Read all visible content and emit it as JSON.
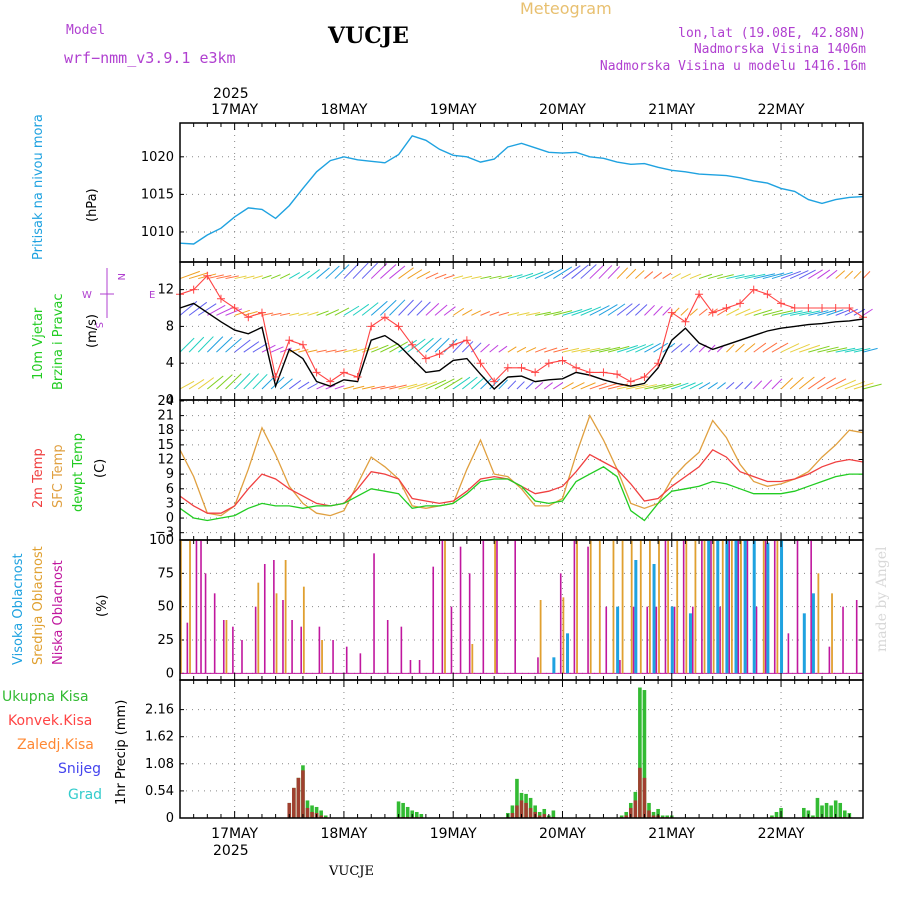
{
  "header": {
    "model_label": "Model",
    "model_name": "wrf−nmm_v3.9.1  e3km",
    "station": "VUCJE",
    "meteogram": "Meteogram",
    "lonlat": "lon,lat (19.08E, 42.88N)",
    "altitude": "Nadmorska Visina 1406m",
    "model_altitude": "Nadmorska Visina u modelu 1416.16m",
    "year": "2025",
    "watermark": "made by Angel",
    "footer_station": "VUCJE"
  },
  "colors": {
    "pressure": "#1fa2e0",
    "wind_speed": "#000000",
    "gust": "#ff4444",
    "temp2m": "#f04040",
    "sfc": "#e0a040",
    "dewpt": "#22cc22",
    "cloud_high": "#1fa2e0",
    "cloud_mid": "#e0a030",
    "cloud_low": "#c0179e",
    "precip_total": "#33bb33",
    "precip_conv": "#a04030"
  },
  "chart_data": [
    {
      "id": "pressure",
      "type": "line",
      "ylabel": "Pritisak na nivou mora",
      "unit": "(hPa)",
      "ylim": [
        1006,
        1024.5
      ],
      "yticks": [
        "1010",
        "1015",
        "1020"
      ],
      "ytick_values": [
        1010,
        1015,
        1020
      ],
      "x_hours": [
        0,
        3,
        6,
        9,
        12,
        15,
        18,
        21,
        24,
        27,
        30,
        33,
        36,
        39,
        42,
        45,
        48,
        51,
        54,
        57,
        60,
        63,
        66,
        69,
        72,
        75,
        78,
        81,
        84,
        87,
        90,
        93,
        96,
        99,
        102,
        105,
        108,
        111,
        114,
        117,
        120,
        123,
        126,
        129,
        132,
        135,
        138,
        141,
        144,
        147,
        150
      ],
      "values": [
        1008.5,
        1008.4,
        1009.6,
        1010.5,
        1012.0,
        1013.2,
        1013.0,
        1011.8,
        1013.5,
        1015.8,
        1018.0,
        1019.5,
        1020.0,
        1019.6,
        1019.4,
        1019.2,
        1020.3,
        1022.8,
        1022.2,
        1021.0,
        1020.2,
        1020.0,
        1019.3,
        1019.7,
        1021.3,
        1021.8,
        1021.2,
        1020.6,
        1020.5,
        1020.6,
        1020.0,
        1019.8,
        1019.3,
        1019.0,
        1019.1,
        1018.6,
        1018.2,
        1018.0,
        1017.7,
        1017.6,
        1017.5,
        1017.2,
        1016.8,
        1016.5,
        1015.8,
        1015.4,
        1014.3,
        1013.8,
        1014.3,
        1014.6,
        1014.7
      ]
    },
    {
      "id": "wind",
      "type": "line",
      "ylabel_1": "10m Vjetar",
      "ylabel_2": "Brzina i Pravac",
      "unit": "(m/s)",
      "compass": {
        "n": "N",
        "w": "W",
        "e": "E",
        "s": "S"
      },
      "ylim": [
        0,
        15
      ],
      "yticks": [
        "0",
        "4",
        "8",
        "12"
      ],
      "ytick_values": [
        0,
        4,
        8,
        12
      ],
      "x_hours": [
        0,
        3,
        6,
        9,
        12,
        15,
        18,
        21,
        24,
        27,
        30,
        33,
        36,
        39,
        42,
        45,
        48,
        51,
        54,
        57,
        60,
        63,
        66,
        69,
        72,
        75,
        78,
        81,
        84,
        87,
        90,
        93,
        96,
        99,
        102,
        105,
        108,
        111,
        114,
        117,
        120,
        123,
        126,
        129,
        132,
        135,
        138,
        141,
        144,
        147,
        150
      ],
      "speed": [
        10.0,
        10.5,
        9.5,
        8.5,
        7.6,
        7.2,
        7.9,
        1.5,
        5.5,
        4.5,
        2.0,
        1.5,
        2.2,
        2.0,
        6.5,
        7.0,
        6.0,
        4.5,
        3.0,
        3.2,
        4.3,
        4.5,
        2.8,
        1.2,
        2.5,
        2.6,
        2.0,
        2.2,
        2.3,
        3.0,
        2.7,
        2.2,
        1.8,
        1.5,
        1.8,
        3.5,
        6.5,
        7.8,
        6.2,
        5.5,
        6.0,
        6.5,
        7.0,
        7.5,
        7.8,
        8.0,
        8.2,
        8.3,
        8.5,
        8.6,
        8.8
      ],
      "gust": [
        11.5,
        12.0,
        13.5,
        11.0,
        10.0,
        9.0,
        9.5,
        2.5,
        6.5,
        6.0,
        3.0,
        2.0,
        3.0,
        2.5,
        8.0,
        9.0,
        8.0,
        6.0,
        4.5,
        5.0,
        6.0,
        6.5,
        4.0,
        2.0,
        3.5,
        3.5,
        3.0,
        4.0,
        4.3,
        3.5,
        3.0,
        3.0,
        2.8,
        2.0,
        2.5,
        4.0,
        9.5,
        8.5,
        11.5,
        9.5,
        10.0,
        10.5,
        12.0,
        11.5,
        10.5,
        10.0,
        10.0,
        10.0,
        10.0,
        10.0,
        9.0
      ]
    },
    {
      "id": "temperature",
      "type": "line",
      "ylabel_1": "2m Temp",
      "ylabel_2": "SFC Temp",
      "ylabel_3": "dewpt Temp",
      "unit": "(C)",
      "ylim": [
        -4.5,
        24.2
      ],
      "yticks": [
        "−3",
        "0",
        "3",
        "6",
        "9",
        "12",
        "15",
        "18",
        "21",
        "24"
      ],
      "ytick_values": [
        -3,
        0,
        3,
        6,
        9,
        12,
        15,
        18,
        21,
        24
      ],
      "x_hours": [
        0,
        3,
        6,
        9,
        12,
        15,
        18,
        21,
        24,
        27,
        30,
        33,
        36,
        39,
        42,
        45,
        48,
        51,
        54,
        57,
        60,
        63,
        66,
        69,
        72,
        75,
        78,
        81,
        84,
        87,
        90,
        93,
        96,
        99,
        102,
        105,
        108,
        111,
        114,
        117,
        120,
        123,
        126,
        129,
        132,
        135,
        138,
        141,
        144,
        147,
        150
      ],
      "temp2m": [
        4.5,
        2.5,
        1.0,
        1.0,
        2.5,
        6.0,
        9.0,
        8.0,
        6.0,
        4.5,
        3.0,
        2.5,
        3.0,
        6.0,
        9.5,
        9.0,
        8.0,
        4.0,
        3.5,
        3.0,
        3.5,
        5.5,
        8.0,
        8.5,
        8.0,
        6.5,
        5.0,
        5.5,
        6.5,
        9.5,
        13.0,
        11.5,
        10.0,
        7.0,
        3.5,
        4.0,
        6.5,
        8.5,
        10.5,
        14.0,
        12.5,
        9.5,
        8.5,
        7.5,
        7.5,
        8.0,
        9.0,
        10.5,
        11.5,
        12.0,
        11.5
      ],
      "sfc": [
        14.0,
        8.5,
        1.0,
        0.5,
        2.5,
        10.0,
        18.5,
        13.0,
        6.5,
        3.0,
        1.0,
        0.5,
        1.5,
        7.0,
        12.5,
        10.5,
        8.0,
        2.5,
        2.0,
        2.5,
        3.0,
        10.0,
        16.0,
        9.0,
        8.5,
        6.0,
        2.5,
        2.5,
        4.0,
        13.0,
        21.0,
        16.0,
        10.0,
        3.0,
        2.0,
        3.0,
        8.0,
        11.0,
        13.5,
        20.0,
        16.5,
        11.0,
        7.5,
        6.5,
        7.0,
        8.0,
        9.5,
        12.5,
        15.0,
        18.0,
        17.5
      ],
      "dewpt": [
        2.0,
        0.0,
        -0.5,
        0.0,
        0.5,
        2.0,
        3.0,
        2.5,
        2.5,
        2.0,
        2.5,
        2.5,
        3.0,
        4.5,
        6.0,
        5.5,
        5.0,
        2.0,
        2.5,
        2.5,
        3.0,
        5.0,
        7.5,
        8.0,
        8.0,
        6.5,
        3.5,
        3.0,
        3.5,
        7.5,
        9.0,
        10.5,
        8.5,
        1.5,
        -0.5,
        3.0,
        5.5,
        6.0,
        6.5,
        7.5,
        7.0,
        6.0,
        5.0,
        5.0,
        5.0,
        5.5,
        6.5,
        7.5,
        8.5,
        9.0,
        9.0
      ]
    },
    {
      "id": "clouds",
      "type": "bar",
      "ylabel_1": "Visoka Oblacnost",
      "ylabel_2": "Srednja Oblacnost",
      "ylabel_3": "Niska Oblacnost",
      "unit": "(%)",
      "ylim": [
        -5,
        100
      ],
      "yticks": [
        "0",
        "25",
        "50",
        "75",
        "100"
      ],
      "ytick_values": [
        0,
        25,
        50,
        75,
        100
      ],
      "low": {
        "x": [
          1,
          3,
          4,
          5,
          7,
          9,
          11,
          13,
          16,
          18,
          20,
          22,
          24,
          26,
          30,
          33,
          36,
          39,
          42,
          45,
          48,
          50,
          52,
          55,
          57,
          59,
          61,
          63,
          66,
          69,
          73,
          78,
          83,
          86,
          89,
          93,
          96,
          99,
          102,
          104,
          106,
          108,
          110,
          112,
          114,
          116,
          118,
          120,
          122,
          124,
          126,
          128,
          130,
          133,
          135,
          138,
          142,
          145,
          148
        ],
        "values": [
          38,
          100,
          100,
          75,
          60,
          40,
          35,
          25,
          50,
          82,
          85,
          55,
          40,
          35,
          35,
          25,
          20,
          15,
          90,
          40,
          35,
          10,
          10,
          80,
          100,
          50,
          95,
          75,
          100,
          100,
          100,
          12,
          75,
          100,
          95,
          50,
          10,
          50,
          50,
          50,
          100,
          50,
          100,
          50,
          100,
          100,
          50,
          100,
          100,
          100,
          50,
          100,
          100,
          30,
          100,
          100,
          20,
          50,
          55
        ]
      },
      "mid": {
        "x": [
          0,
          2,
          10,
          17,
          21,
          23,
          27,
          31,
          58,
          64,
          69,
          79,
          84,
          87,
          90,
          92,
          95,
          97,
          99,
          101,
          103,
          105,
          107,
          109,
          111,
          113,
          115,
          117,
          119,
          121,
          123,
          128,
          131,
          140,
          143
        ],
        "values": [
          100,
          100,
          40,
          68,
          60,
          85,
          65,
          25,
          100,
          22,
          100,
          55,
          57,
          100,
          100,
          100,
          100,
          100,
          100,
          100,
          100,
          100,
          100,
          100,
          100,
          100,
          100,
          100,
          100,
          100,
          100,
          100,
          100,
          75,
          60
        ]
      },
      "high": {
        "x": [
          82,
          85,
          96,
          100,
          104,
          108,
          112,
          116,
          118,
          120,
          122,
          124,
          126,
          129,
          132,
          137,
          139
        ],
        "values": [
          12,
          30,
          50,
          85,
          82,
          50,
          45,
          100,
          100,
          100,
          100,
          100,
          100,
          98,
          100,
          45,
          60
        ]
      }
    },
    {
      "id": "precip",
      "type": "bar",
      "ylabel": "1hr Precip (mm)",
      "legend": [
        "Ukupna  Kisa",
        "Konvek.Kisa",
        "Zaledj.Kisa",
        "Snijeg",
        "Grad"
      ],
      "ylim": [
        0,
        2.75
      ],
      "yticks": [
        "0",
        "0.54",
        "1.08",
        "1.62",
        "2.16"
      ],
      "ytick_values": [
        0,
        0.54,
        1.08,
        1.62,
        2.16
      ],
      "x": [
        24,
        25,
        26,
        27,
        28,
        29,
        30,
        31,
        32,
        48,
        49,
        50,
        51,
        52,
        53,
        72,
        73,
        74,
        75,
        76,
        77,
        78,
        79,
        80,
        81,
        82,
        97,
        98,
        99,
        100,
        101,
        102,
        103,
        104,
        105,
        106,
        107,
        108,
        130,
        131,
        132,
        137,
        138,
        139,
        140,
        141,
        142,
        143,
        144,
        145,
        146,
        147
      ],
      "total": [
        0.3,
        0.6,
        0.8,
        1.05,
        0.35,
        0.25,
        0.22,
        0.15,
        0.05,
        0.33,
        0.3,
        0.22,
        0.15,
        0.12,
        0.08,
        0.1,
        0.25,
        0.78,
        0.5,
        0.48,
        0.4,
        0.25,
        0.12,
        0.18,
        0.05,
        0.15,
        0.05,
        0.12,
        0.3,
        0.52,
        2.6,
        2.55,
        0.3,
        0.12,
        0.18,
        0.05,
        0.05,
        0.05,
        0.05,
        0.12,
        0.2,
        0.2,
        0.15,
        0.05,
        0.4,
        0.25,
        0.3,
        0.25,
        0.35,
        0.3,
        0.15,
        0.1
      ],
      "convective": [
        0.3,
        0.6,
        0.8,
        0.95,
        0.2,
        0.12,
        0.1,
        0.05,
        0.02,
        0.02,
        0.02,
        0.02,
        0.02,
        0.02,
        0.02,
        0.02,
        0.1,
        0.25,
        0.35,
        0.3,
        0.2,
        0.12,
        0.05,
        0.08,
        0.02,
        0.02,
        0.02,
        0.05,
        0.2,
        0.35,
        1.0,
        0.8,
        0.15,
        0.05,
        0.05,
        0.02,
        0.02,
        0.02,
        0.02,
        0.02,
        0.02,
        0.02,
        0.02,
        0.02,
        0.02,
        0.02,
        0.02,
        0.02,
        0.02,
        0.02,
        0.02,
        0.02
      ]
    }
  ],
  "xaxis": {
    "days": [
      "17MAY",
      "18MAY",
      "19MAY",
      "20MAY",
      "21MAY",
      "22MAY"
    ],
    "day_hours": [
      12,
      36,
      60,
      84,
      108,
      132
    ],
    "hours_total": 150
  }
}
